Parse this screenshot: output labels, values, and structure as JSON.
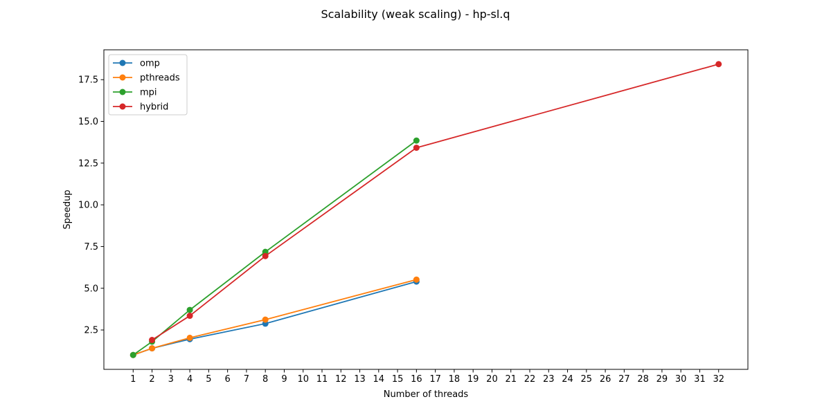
{
  "chart_data": {
    "type": "line",
    "title": "Scalability (weak scaling) - hp-sl.q",
    "xlabel": "Number of threads",
    "ylabel": "Speedup",
    "xlim": [
      -0.55,
      33.55
    ],
    "ylim": [
      0.14,
      19.29
    ],
    "x_ticks": [
      1,
      2,
      3,
      4,
      5,
      6,
      7,
      8,
      9,
      10,
      11,
      12,
      13,
      14,
      15,
      16,
      17,
      18,
      19,
      20,
      21,
      22,
      23,
      24,
      25,
      26,
      27,
      28,
      29,
      30,
      31,
      32
    ],
    "y_ticks": [
      2.5,
      5.0,
      7.5,
      10.0,
      12.5,
      15.0,
      17.5
    ],
    "y_tick_labels": [
      "2.5",
      "5.0",
      "7.5",
      "10.0",
      "12.5",
      "15.0",
      "17.5"
    ],
    "grid": false,
    "legend_position": "upper-left",
    "series": [
      {
        "name": "omp",
        "color": "#1f77b4",
        "x": [
          1,
          2,
          4,
          8,
          16
        ],
        "y": [
          1.0,
          1.4,
          1.95,
          2.88,
          5.4
        ]
      },
      {
        "name": "pthreads",
        "color": "#ff7f0e",
        "x": [
          1,
          2,
          4,
          8,
          16
        ],
        "y": [
          1.0,
          1.4,
          2.03,
          3.12,
          5.52
        ]
      },
      {
        "name": "mpi",
        "color": "#2ca02c",
        "x": [
          1,
          2,
          4,
          8,
          16
        ],
        "y": [
          1.0,
          1.8,
          3.7,
          7.18,
          13.85
        ]
      },
      {
        "name": "hybrid",
        "color": "#d62728",
        "x": [
          2,
          4,
          8,
          16,
          32
        ],
        "y": [
          1.9,
          3.35,
          6.93,
          13.42,
          18.43
        ]
      }
    ]
  }
}
